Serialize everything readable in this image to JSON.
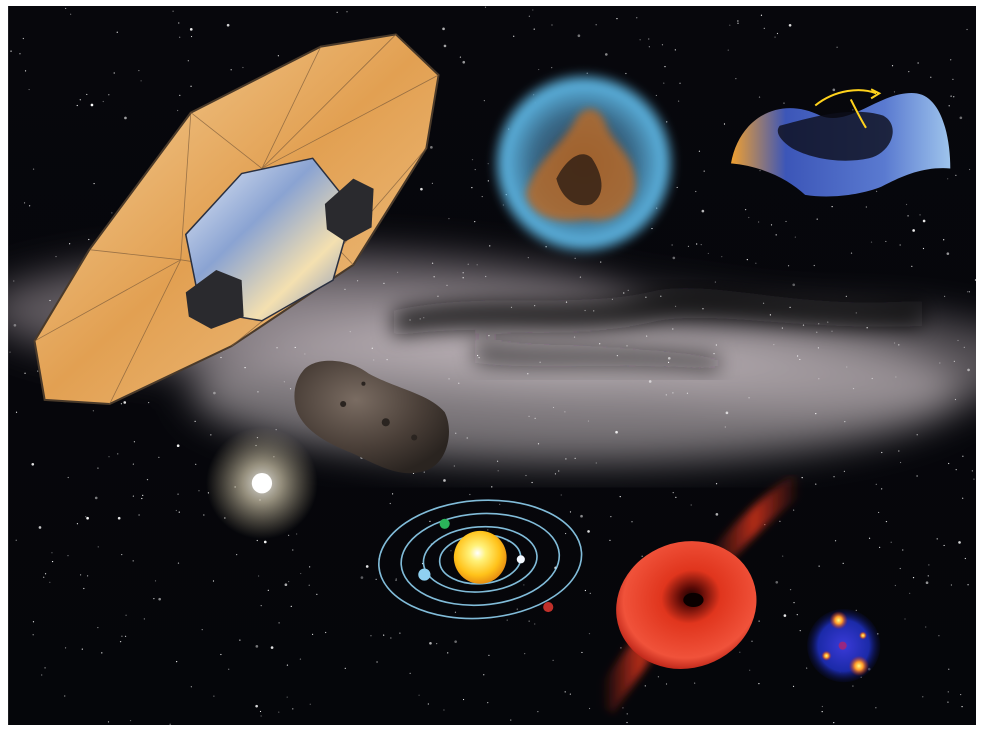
{
  "scene": {
    "subject": "space",
    "palette": {
      "sky": "#05060a",
      "milky_way": "#d8cfd2",
      "dust_lane": "#120f14",
      "spacecraft_gold": "#e9b06a",
      "spacecraft_mirror": "#9fb3d6",
      "asteroid": "#4a3f38",
      "nebula_blue": "#4fa7d8",
      "nebula_orange": "#b56a2a",
      "surface_blue": "#3c56b8",
      "orbit": "#8fd0f0",
      "sun": "#ffd21c",
      "red_jet": "#e0351d",
      "quasar_blue": "#1b2aa8",
      "quasar_core": "#ff9a2a"
    },
    "objects": [
      {
        "name": "spacecraft",
        "icon": "hexagonal-shield-spacecraft-icon"
      },
      {
        "name": "nebula",
        "icon": "nebula-bubble-icon"
      },
      {
        "name": "curved-surface",
        "icon": "saddle-surface-icon"
      },
      {
        "name": "asteroid",
        "icon": "asteroid-icon"
      },
      {
        "name": "star-cluster",
        "icon": "globular-cluster-icon"
      },
      {
        "name": "solar-system",
        "icon": "planetary-orbits-icon"
      },
      {
        "name": "red-jet",
        "icon": "accretion-disk-jet-icon"
      },
      {
        "name": "lensed-quasar",
        "icon": "lensed-quasar-icon"
      }
    ]
  }
}
